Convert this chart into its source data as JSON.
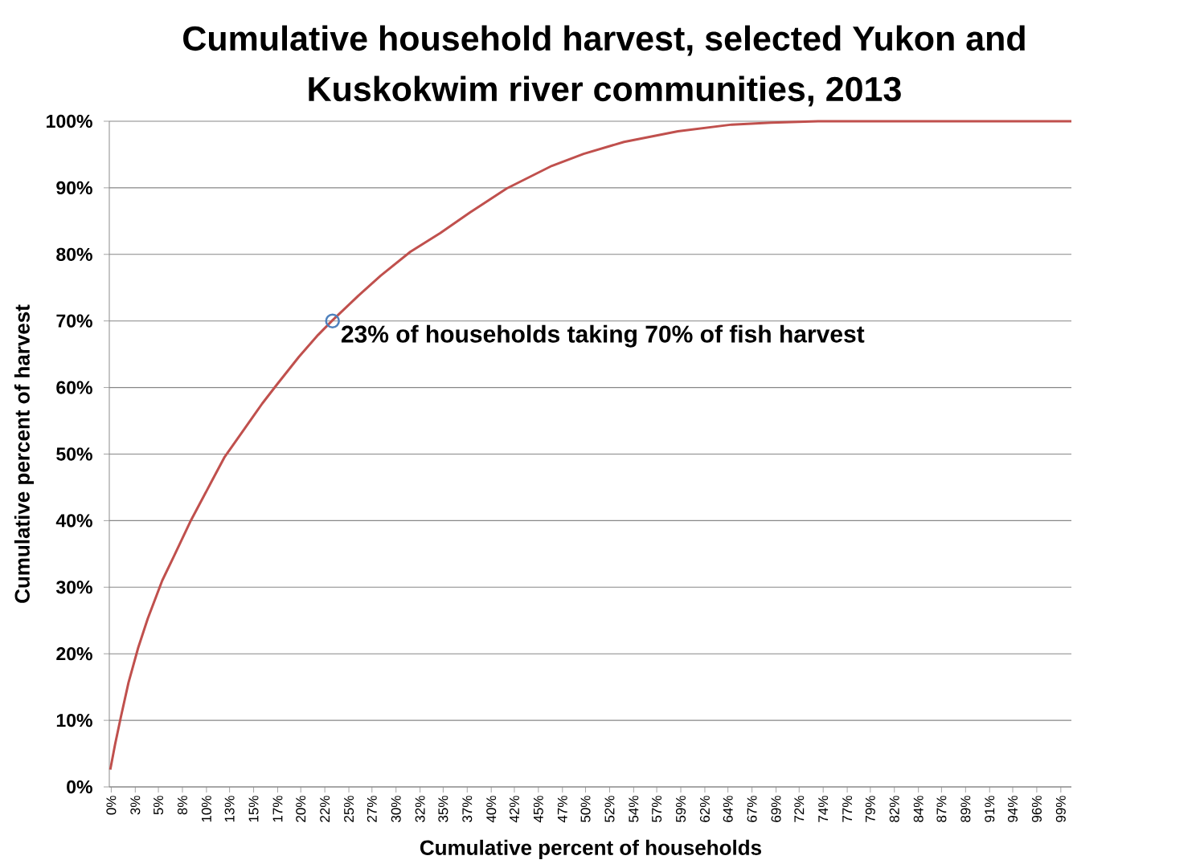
{
  "chart_data": {
    "type": "line",
    "title": "Cumulative household harvest, selected Yukon and Kuskokwim river communities, 2013",
    "xlabel": "Cumulative percent of households",
    "ylabel": "Cumulative percent of harvest",
    "xlim": [
      0,
      100
    ],
    "xticks": [
      {
        "value": 0.2,
        "label": "0%"
      },
      {
        "value": 2.7,
        "label": "3%"
      },
      {
        "value": 5.1,
        "label": "5%"
      },
      {
        "value": 7.6,
        "label": "8%"
      },
      {
        "value": 10.1,
        "label": "10%"
      },
      {
        "value": 12.5,
        "label": "13%"
      },
      {
        "value": 15.0,
        "label": "15%"
      },
      {
        "value": 17.5,
        "label": "17%"
      },
      {
        "value": 19.9,
        "label": "20%"
      },
      {
        "value": 22.4,
        "label": "22%"
      },
      {
        "value": 24.9,
        "label": "25%"
      },
      {
        "value": 27.3,
        "label": "27%"
      },
      {
        "value": 29.8,
        "label": "30%"
      },
      {
        "value": 32.3,
        "label": "32%"
      },
      {
        "value": 34.7,
        "label": "35%"
      },
      {
        "value": 37.2,
        "label": "37%"
      },
      {
        "value": 39.7,
        "label": "40%"
      },
      {
        "value": 42.1,
        "label": "42%"
      },
      {
        "value": 44.6,
        "label": "45%"
      },
      {
        "value": 47.1,
        "label": "47%"
      },
      {
        "value": 49.5,
        "label": "50%"
      },
      {
        "value": 52.0,
        "label": "52%"
      },
      {
        "value": 54.5,
        "label": "54%"
      },
      {
        "value": 56.9,
        "label": "57%"
      },
      {
        "value": 59.4,
        "label": "59%"
      },
      {
        "value": 61.9,
        "label": "62%"
      },
      {
        "value": 64.3,
        "label": "64%"
      },
      {
        "value": 66.8,
        "label": "67%"
      },
      {
        "value": 69.3,
        "label": "69%"
      },
      {
        "value": 71.7,
        "label": "72%"
      },
      {
        "value": 74.2,
        "label": "74%"
      },
      {
        "value": 76.7,
        "label": "77%"
      },
      {
        "value": 79.1,
        "label": "79%"
      },
      {
        "value": 81.6,
        "label": "82%"
      },
      {
        "value": 84.1,
        "label": "84%"
      },
      {
        "value": 86.5,
        "label": "87%"
      },
      {
        "value": 89.0,
        "label": "89%"
      },
      {
        "value": 91.5,
        "label": "91%"
      },
      {
        "value": 93.9,
        "label": "94%"
      },
      {
        "value": 96.4,
        "label": "96%"
      },
      {
        "value": 98.9,
        "label": "99%"
      }
    ],
    "ylim": [
      0,
      100
    ],
    "yticks": [
      {
        "value": 0,
        "label": "0%"
      },
      {
        "value": 10,
        "label": "10%"
      },
      {
        "value": 20,
        "label": "20%"
      },
      {
        "value": 30,
        "label": "30%"
      },
      {
        "value": 40,
        "label": "40%"
      },
      {
        "value": 50,
        "label": "50%"
      },
      {
        "value": 60,
        "label": "60%"
      },
      {
        "value": 70,
        "label": "70%"
      },
      {
        "value": 80,
        "label": "80%"
      },
      {
        "value": 90,
        "label": "90%"
      },
      {
        "value": 100,
        "label": "100%"
      }
    ],
    "grid": "y",
    "series": [
      {
        "color": "#c0504d",
        "marker": "none",
        "x": [
          0.1,
          0.6,
          1.2,
          2.0,
          3.0,
          4.0,
          5.5,
          6.7,
          8.4,
          10.6,
          12.0,
          14.0,
          15.9,
          17.4,
          19.7,
          21.7,
          23.2,
          25.9,
          28.2,
          31.3,
          34.4,
          37.5,
          41.3,
          46.0,
          49.3,
          53.5,
          59.1,
          64.7,
          68.8,
          73.9,
          100
        ],
        "values": [
          2.6,
          6.4,
          10.5,
          15.7,
          20.9,
          25.3,
          31.0,
          34.6,
          39.8,
          45.8,
          49.6,
          53.7,
          57.6,
          60.4,
          64.6,
          67.9,
          70.1,
          73.8,
          76.8,
          80.4,
          83.2,
          86.3,
          89.9,
          93.3,
          95.1,
          96.9,
          98.5,
          99.5,
          99.8,
          100,
          100
        ]
      },
      {
        "type": "scatter",
        "color": "#4f81bd",
        "marker": "circle",
        "x": [
          23.2
        ],
        "values": [
          70
        ]
      }
    ],
    "annotations": [
      {
        "text": "23% of households taking 70% of fish harvest",
        "x": 23.2,
        "y": 70
      }
    ]
  }
}
